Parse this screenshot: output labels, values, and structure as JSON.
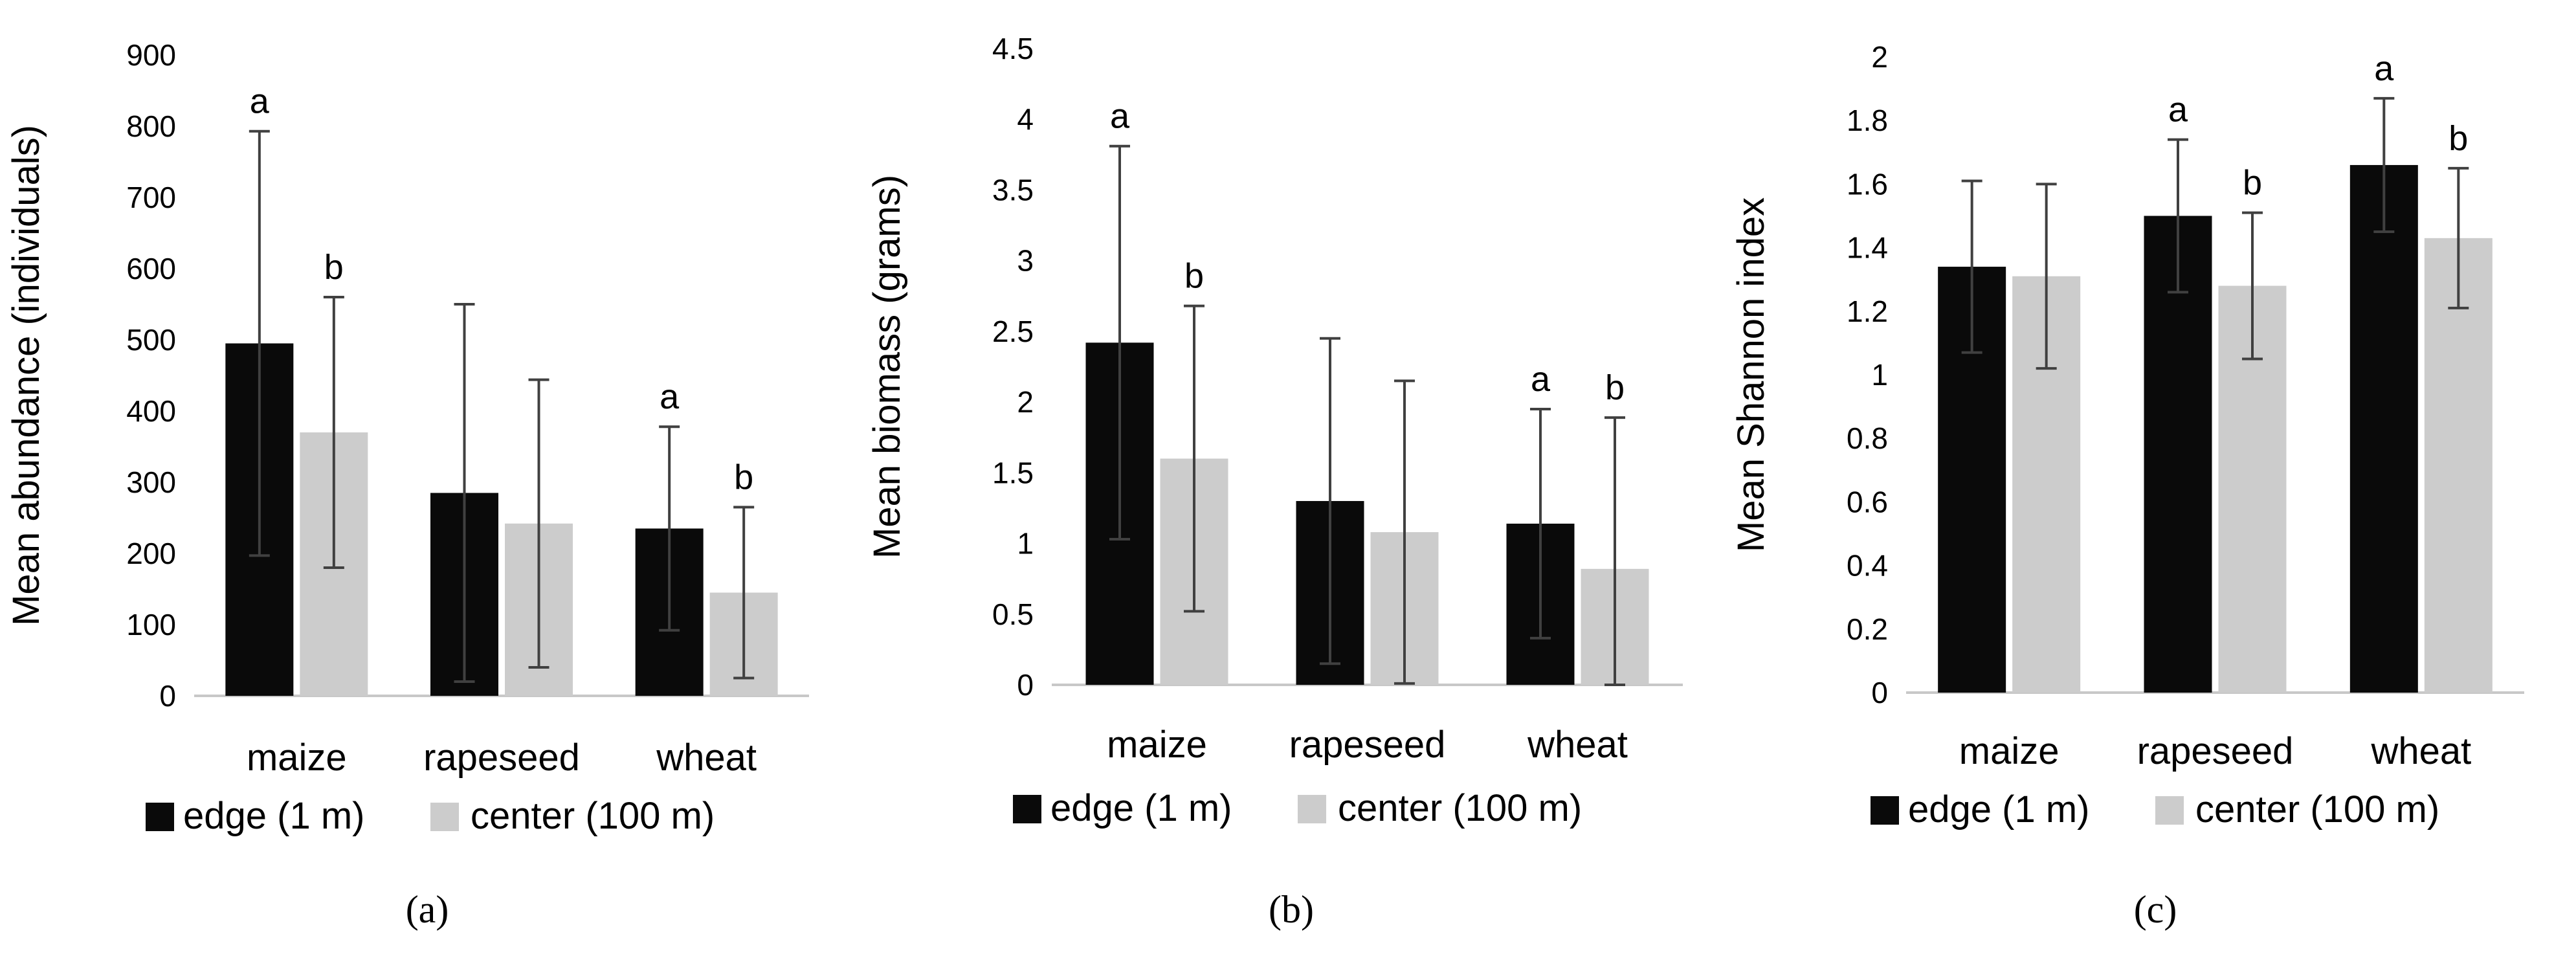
{
  "colors": {
    "edge": "#0a0a0a",
    "center": "#cccccc",
    "axis": "#c8c8c8",
    "error": "#404040"
  },
  "chart_data": [
    {
      "type": "bar",
      "panel_label": "(a)",
      "ylabel": "Mean abundance (individuals)",
      "categories": [
        "maize",
        "rapeseed",
        "wheat"
      ],
      "ylim": [
        0,
        900
      ],
      "yticks": [
        "0",
        "100",
        "200",
        "300",
        "400",
        "500",
        "600",
        "700",
        "800",
        "900"
      ],
      "series": [
        {
          "name": "edge (1 m)",
          "values": [
            495,
            285,
            235
          ],
          "errors": [
            298,
            265,
            143
          ],
          "labels": [
            "a",
            "",
            "a"
          ]
        },
        {
          "name": "center (100 m)",
          "values": [
            370,
            242,
            145
          ],
          "errors": [
            190,
            202,
            120
          ],
          "labels": [
            "b",
            "",
            "b"
          ]
        }
      ]
    },
    {
      "type": "bar",
      "panel_label": "(b)",
      "ylabel": "Mean biomass (grams)",
      "categories": [
        "maize",
        "rapeseed",
        "wheat"
      ],
      "ylim": [
        0,
        4.5
      ],
      "yticks": [
        "0",
        "0.5",
        "1",
        "1.5",
        "2",
        "2.5",
        "3",
        "3.5",
        "4",
        "4.5"
      ],
      "series": [
        {
          "name": "edge (1 m)",
          "values": [
            2.42,
            1.3,
            1.14
          ],
          "errors": [
            1.39,
            1.15,
            0.81
          ],
          "labels": [
            "a",
            "",
            "a"
          ]
        },
        {
          "name": "center (100 m)",
          "values": [
            1.6,
            1.08,
            0.82
          ],
          "errors": [
            1.08,
            1.07,
            1.07
          ],
          "labels": [
            "b",
            "",
            "b"
          ]
        }
      ]
    },
    {
      "type": "bar",
      "panel_label": "(c)",
      "ylabel": "Mean Shannon index",
      "categories": [
        "maize",
        "rapeseed",
        "wheat"
      ],
      "ylim": [
        0,
        2
      ],
      "yticks": [
        "0",
        "0.2",
        "0.4",
        "0.6",
        "0.8",
        "1",
        "1.2",
        "1.4",
        "1.6",
        "1.8",
        "2"
      ],
      "series": [
        {
          "name": "edge (1 m)",
          "values": [
            1.34,
            1.5,
            1.66
          ],
          "errors": [
            0.27,
            0.24,
            0.21
          ],
          "labels": [
            "",
            "a",
            "a"
          ]
        },
        {
          "name": "center (100 m)",
          "values": [
            1.31,
            1.28,
            1.43
          ],
          "errors": [
            0.29,
            0.23,
            0.22
          ],
          "labels": [
            "",
            "b",
            "b"
          ]
        }
      ]
    }
  ]
}
